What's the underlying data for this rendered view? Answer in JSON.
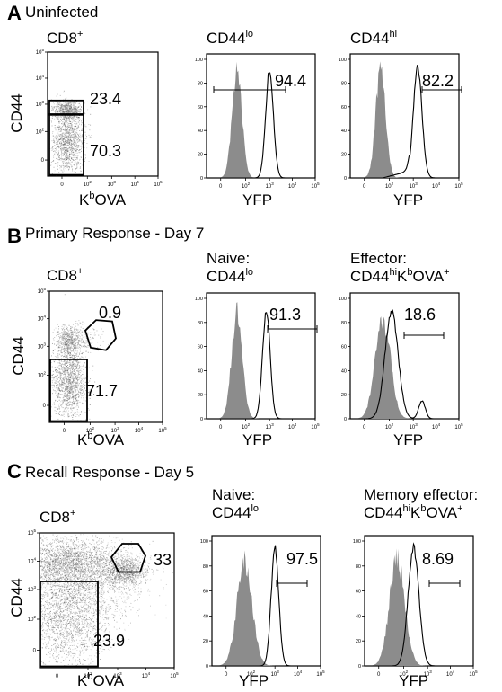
{
  "sections": [
    {
      "letter": "A",
      "title": "Uninfected",
      "dot": {
        "header": "CD8",
        "header_sup": "+",
        "gate_upper": "23.4",
        "gate_lower": "70.3"
      },
      "hist1": {
        "header_lines": [
          {
            "main": "CD44",
            "sup": "lo",
            "rest": ""
          }
        ],
        "value": "94.4"
      },
      "hist2": {
        "header_lines": [
          {
            "main": "CD44",
            "sup": "hi",
            "rest": ""
          }
        ],
        "value": "82.2"
      }
    },
    {
      "letter": "B",
      "title": "Primary Response - Day 7",
      "dot": {
        "header": "CD8",
        "header_sup": "+",
        "gate_upper": "0.9",
        "gate_lower": "71.7"
      },
      "hist1": {
        "header_lines": [
          {
            "main": "Naive:",
            "sup": "",
            "rest": ""
          },
          {
            "main": "CD44",
            "sup": "lo",
            "rest": ""
          }
        ],
        "value": "91.3"
      },
      "hist2": {
        "header_lines": [
          {
            "main": "Effector:",
            "sup": "",
            "rest": ""
          },
          {
            "main": "CD44",
            "sup": "hi",
            "rest": "K",
            "sup2": "b",
            "rest2": "OVA",
            "sup3": "+"
          }
        ],
        "value": "18.6"
      }
    },
    {
      "letter": "C",
      "title": "Recall Response - Day 5",
      "dot": {
        "header": "CD8",
        "header_sup": "+",
        "gate_upper": "33",
        "gate_lower": "23.9"
      },
      "hist1": {
        "header_lines": [
          {
            "main": "Naive:",
            "sup": "",
            "rest": ""
          },
          {
            "main": "CD44",
            "sup": "lo",
            "rest": ""
          }
        ],
        "value": "97.5"
      },
      "hist2": {
        "header_lines": [
          {
            "main": "Memory effector:",
            "sup": "",
            "rest": ""
          },
          {
            "main": "CD44",
            "sup": "hi",
            "rest": "K",
            "sup2": "b",
            "rest2": "OVA",
            "sup3": "+"
          }
        ],
        "value": "8.69"
      }
    }
  ],
  "axes": {
    "dot_xlabel_main": "K",
    "dot_xlabel_sup": "b",
    "dot_xlabel_rest": "OVA",
    "dot_ylabel": "CD44",
    "hist_xlabel": "YFP",
    "log_ticks": [
      "0",
      "10^2",
      "10^3",
      "10^4",
      "10^5"
    ],
    "hist_y_ticks": [
      "0",
      "20",
      "40",
      "60",
      "80",
      "100"
    ]
  },
  "chart_data": [
    {
      "type": "scatter",
      "panel": "A-dot",
      "xlabel": "KbOVA",
      "ylabel": "CD44",
      "xscale": "log",
      "yscale": "log",
      "gates": [
        {
          "name": "upper",
          "percent": 23.4
        },
        {
          "name": "lower",
          "percent": 70.3
        }
      ]
    },
    {
      "type": "area",
      "panel": "A-CD44lo",
      "xlabel": "YFP",
      "xscale": "log",
      "ylim": [
        0,
        100
      ],
      "gate_percent": 94.4,
      "series": [
        {
          "name": "",
          "style": "filled-gray",
          "peak_log10": 2.0
        },
        {
          "name": "",
          "style": "outline",
          "peak_log10": 3.7
        }
      ]
    },
    {
      "type": "area",
      "panel": "A-CD44hi",
      "xlabel": "YFP",
      "xscale": "log",
      "ylim": [
        0,
        100
      ],
      "gate_percent": 82.2,
      "series": [
        {
          "name": "",
          "style": "filled-gray",
          "peak_log10": 2.0
        },
        {
          "name": "",
          "style": "outline",
          "peak_log10": 3.7
        }
      ]
    },
    {
      "type": "scatter",
      "panel": "B-dot",
      "xlabel": "KbOVA",
      "ylabel": "CD44",
      "xscale": "log",
      "yscale": "log",
      "gates": [
        {
          "name": "upper",
          "percent": 0.9
        },
        {
          "name": "lower",
          "percent": 71.7
        }
      ]
    },
    {
      "type": "area",
      "panel": "B-Naive",
      "xlabel": "YFP",
      "xscale": "log",
      "ylim": [
        0,
        100
      ],
      "gate_percent": 91.3,
      "series": [
        {
          "name": "",
          "style": "filled-gray",
          "peak_log10": 2.0
        },
        {
          "name": "",
          "style": "outline",
          "peak_log10": 3.6
        }
      ]
    },
    {
      "type": "area",
      "panel": "B-Effector",
      "xlabel": "YFP",
      "xscale": "log",
      "ylim": [
        0,
        100
      ],
      "gate_percent": 18.6,
      "series": [
        {
          "name": "",
          "style": "filled-gray",
          "peak_log10": 2.3
        },
        {
          "name": "",
          "style": "outline",
          "peak_log10": 2.6
        }
      ]
    },
    {
      "type": "scatter",
      "panel": "C-dot",
      "xlabel": "KbOVA",
      "ylabel": "CD44",
      "xscale": "log",
      "yscale": "log",
      "gates": [
        {
          "name": "upper",
          "percent": 33
        },
        {
          "name": "lower",
          "percent": 23.9
        }
      ]
    },
    {
      "type": "area",
      "panel": "C-Naive",
      "xlabel": "YFP",
      "xscale": "log",
      "ylim": [
        0,
        100
      ],
      "gate_percent": 97.5,
      "series": [
        {
          "name": "",
          "style": "filled-gray",
          "peak_log10": 2.0
        },
        {
          "name": "",
          "style": "outline",
          "peak_log10": 3.7
        }
      ]
    },
    {
      "type": "area",
      "panel": "C-Memory",
      "xlabel": "YFP",
      "xscale": "log",
      "ylim": [
        0,
        100
      ],
      "gate_percent": 8.69,
      "series": [
        {
          "name": "",
          "style": "filled-gray",
          "peak_log10": 2.0
        },
        {
          "name": "",
          "style": "outline",
          "peak_log10": 2.8
        }
      ]
    }
  ]
}
